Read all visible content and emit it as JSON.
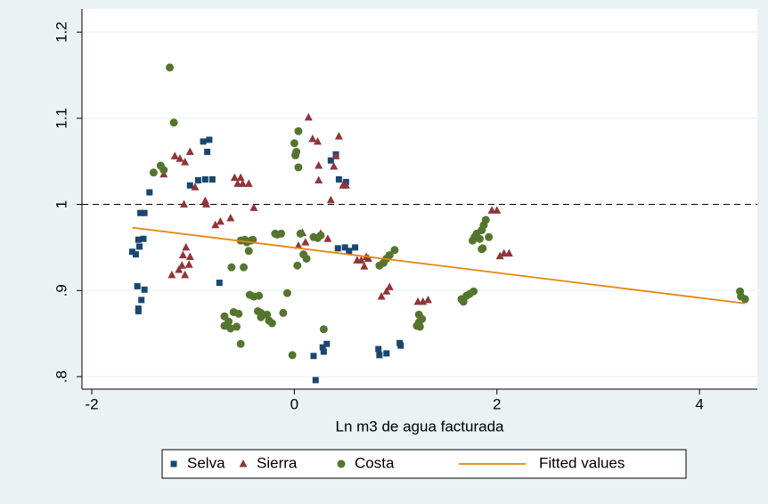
{
  "chart_data": {
    "type": "scatter",
    "xlabel": "Ln m3 de agua facturada",
    "xlim": [
      -2.097,
      4.571
    ],
    "xticks": [
      -2,
      0,
      2,
      4
    ],
    "ylim": [
      0.7855,
      1.227
    ],
    "yticks": [
      {
        "value": 0.8,
        "label": ".8"
      },
      {
        "value": 0.9,
        "label": ".9"
      },
      1,
      1.1,
      1.2
    ],
    "grid": true,
    "hline": 1,
    "legend": "bottom",
    "series": [
      {
        "name": "Selva",
        "type": "scatter",
        "marker": "square",
        "color": "#1a476f",
        "x": [
          -1.6,
          -1.565,
          -1.53,
          -1.49,
          -1.54,
          -1.52,
          -1.48,
          -1.43,
          -1.55,
          -1.54,
          -1.54,
          -1.51,
          -1.48,
          -1.03,
          -0.95,
          -0.9,
          -0.84,
          -0.86,
          -0.88,
          -0.81,
          -0.74,
          0.19,
          0.21,
          0.28,
          0.32,
          0.29,
          0.36,
          0.41,
          0.44,
          0.51,
          0.43,
          0.5,
          0.6,
          0.54,
          0.83,
          0.84,
          0.91,
          1.04,
          1.05
        ],
        "values": [
          0.945,
          0.942,
          0.951,
          0.96,
          0.959,
          0.99,
          0.99,
          1.014,
          0.905,
          0.879,
          0.876,
          0.889,
          0.901,
          1.022,
          1.028,
          1.073,
          1.075,
          1.061,
          1.029,
          1.029,
          0.909,
          0.824,
          0.796,
          0.834,
          0.838,
          0.829,
          1.051,
          1.058,
          1.029,
          1.026,
          0.949,
          0.95,
          0.95,
          0.946,
          0.832,
          0.825,
          0.827,
          0.839,
          0.836
        ]
      },
      {
        "name": "Sierra",
        "type": "scatter",
        "marker": "triangle",
        "color": "#90353b",
        "x": [
          -1.29,
          -1.18,
          -1.13,
          -1.08,
          -1.03,
          -0.98,
          -1.09,
          -0.88,
          -0.87,
          -1.21,
          -1.14,
          -1.11,
          -1.1,
          -1.07,
          -1.03,
          -1.08,
          -1.04,
          -0.78,
          -0.73,
          -0.63,
          -0.59,
          -0.53,
          -0.56,
          -0.51,
          -0.45,
          -0.4,
          0.04,
          0.08,
          0.11,
          0.14,
          0.18,
          0.23,
          0.24,
          0.24,
          0.26,
          0.33,
          0.36,
          0.39,
          0.41,
          0.44,
          0.48,
          0.51,
          0.62,
          0.66,
          0.71,
          0.69,
          0.73,
          0.86,
          0.91,
          0.94,
          1.22,
          1.27,
          1.32,
          1.95,
          2.0,
          2.03,
          2.07,
          2.12
        ],
        "values": [
          1.035,
          1.056,
          1.053,
          1.049,
          1.061,
          1.02,
          1.0,
          1.004,
          1.0,
          0.918,
          0.924,
          0.929,
          0.941,
          0.95,
          0.939,
          0.918,
          0.93,
          0.976,
          0.98,
          0.984,
          1.031,
          1.031,
          1.024,
          1.024,
          1.024,
          0.996,
          0.952,
          0.967,
          0.956,
          1.101,
          1.076,
          1.073,
          1.045,
          1.028,
          0.966,
          0.96,
          1.005,
          1.044,
          1.056,
          1.079,
          1.022,
          1.022,
          0.935,
          0.935,
          0.939,
          0.928,
          0.937,
          0.893,
          0.899,
          0.904,
          0.887,
          0.887,
          0.889,
          0.993,
          0.993,
          0.94,
          0.943,
          0.943
        ]
      },
      {
        "name": "Costa",
        "type": "scatter",
        "marker": "circle",
        "color": "#55752f",
        "x": [
          -1.23,
          -1.19,
          -1.39,
          -1.32,
          -1.29,
          -0.62,
          -0.69,
          -0.69,
          -0.65,
          -0.63,
          -0.6,
          -0.57,
          -0.55,
          -0.53,
          -0.5,
          -0.47,
          -0.53,
          -0.49,
          -0.43,
          -0.41,
          -0.45,
          -0.44,
          -0.4,
          -0.35,
          -0.36,
          -0.33,
          -0.33,
          -0.27,
          -0.25,
          -0.22,
          -0.19,
          -0.17,
          -0.13,
          -0.11,
          -0.07,
          -0.02,
          0.03,
          0.04,
          0.0,
          0.02,
          0.01,
          0.04,
          0.06,
          0.09,
          0.12,
          0.19,
          0.23,
          0.26,
          0.29,
          0.84,
          0.88,
          0.91,
          0.94,
          0.99,
          1.21,
          1.23,
          1.23,
          1.26,
          1.24,
          1.65,
          1.67,
          1.7,
          1.73,
          1.77,
          1.76,
          1.78,
          1.8,
          1.83,
          1.85,
          1.87,
          1.89,
          1.92,
          1.85,
          1.86,
          4.4,
          4.41,
          4.45
        ],
        "values": [
          1.159,
          1.095,
          1.037,
          1.045,
          1.04,
          0.927,
          0.87,
          0.859,
          0.864,
          0.856,
          0.875,
          0.858,
          0.873,
          0.838,
          0.927,
          0.956,
          0.958,
          0.959,
          0.958,
          0.959,
          0.946,
          0.895,
          0.893,
          0.894,
          0.876,
          0.874,
          0.869,
          0.872,
          0.865,
          0.862,
          0.966,
          0.965,
          0.966,
          0.874,
          0.897,
          0.825,
          0.929,
          1.085,
          1.071,
          1.061,
          1.057,
          1.043,
          0.966,
          0.942,
          0.937,
          0.962,
          0.961,
          0.964,
          0.855,
          0.929,
          0.932,
          0.937,
          0.941,
          0.947,
          0.859,
          0.863,
          0.872,
          0.867,
          0.858,
          0.89,
          0.887,
          0.894,
          0.896,
          0.899,
          0.958,
          0.962,
          0.966,
          0.96,
          0.97,
          0.976,
          0.982,
          0.962,
          0.948,
          0.949,
          0.899,
          0.893,
          0.89
        ]
      },
      {
        "name": "Fitted values",
        "type": "line",
        "color": "#e5850f",
        "x": [
          -1.6,
          4.45
        ],
        "values": [
          0.973,
          0.885
        ]
      }
    ]
  }
}
